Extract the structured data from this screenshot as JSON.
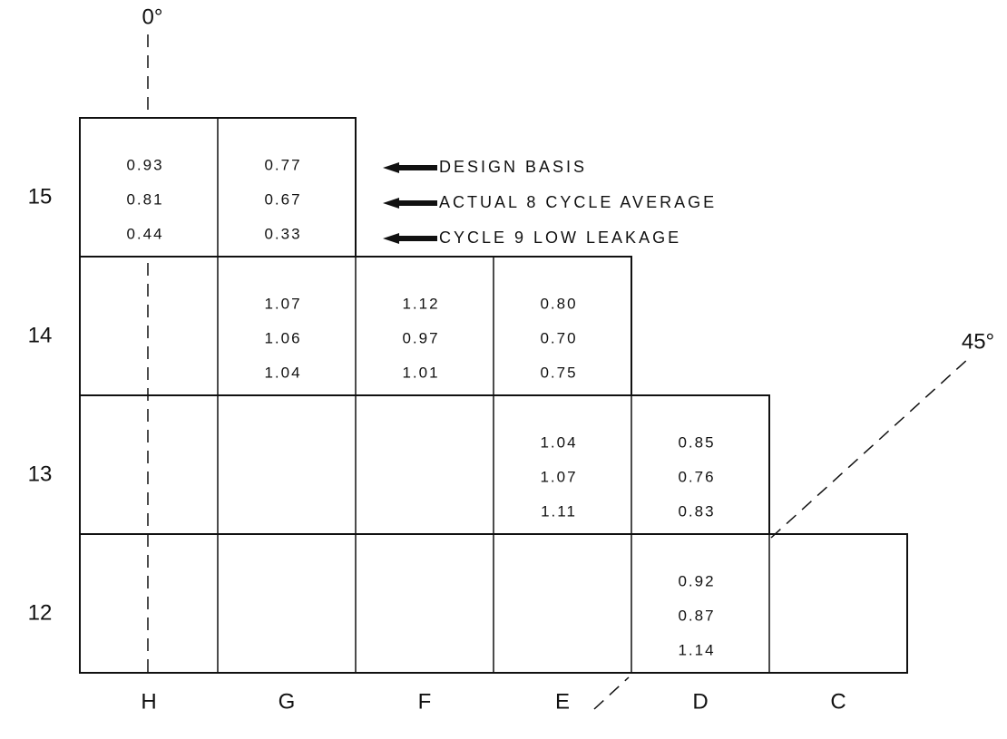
{
  "angles": {
    "top": "0°",
    "diagonal": "45°"
  },
  "legend": [
    "DESIGN BASIS",
    "ACTUAL 8 CYCLE AVERAGE",
    "CYCLE 9 LOW LEAKAGE"
  ],
  "columns": [
    "H",
    "G",
    "F",
    "E",
    "D",
    "C"
  ],
  "rows": [
    {
      "label": "15",
      "cells": [
        [
          "0.93",
          "0.81",
          "0.44"
        ],
        [
          "0.77",
          "0.67",
          "0.33"
        ]
      ]
    },
    {
      "label": "14",
      "cells": [
        null,
        [
          "1.07",
          "1.06",
          "1.04"
        ],
        [
          "1.12",
          "0.97",
          "1.01"
        ],
        [
          "0.80",
          "0.70",
          "0.75"
        ]
      ]
    },
    {
      "label": "13",
      "cells": [
        null,
        null,
        null,
        [
          "1.04",
          "1.07",
          "1.11"
        ],
        [
          "0.85",
          "0.76",
          "0.83"
        ]
      ]
    },
    {
      "label": "12",
      "cells": [
        null,
        null,
        null,
        null,
        [
          "0.92",
          "0.87",
          "1.14"
        ],
        null
      ]
    }
  ]
}
